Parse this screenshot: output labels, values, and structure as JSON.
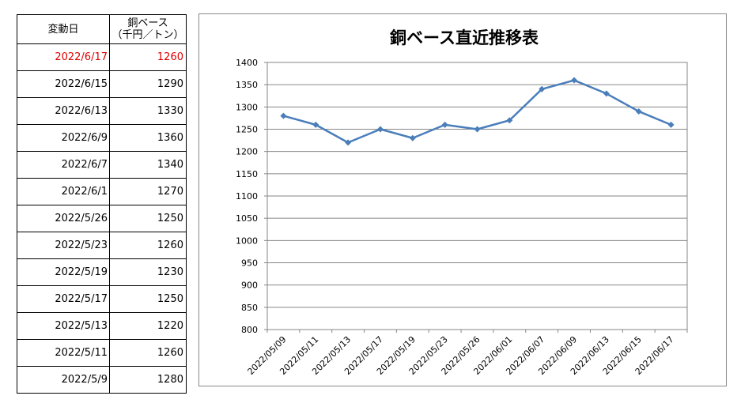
{
  "table": {
    "header_date": "変動日",
    "header_price_line1": "銅ベース",
    "header_price_line2": "（千円／トン）",
    "rows": [
      {
        "date": "2022/6/17",
        "price": "1260",
        "highlight": true
      },
      {
        "date": "2022/6/15",
        "price": "1290",
        "highlight": false
      },
      {
        "date": "2022/6/13",
        "price": "1330",
        "highlight": false
      },
      {
        "date": "2022/6/9",
        "price": "1360",
        "highlight": false
      },
      {
        "date": "2022/6/7",
        "price": "1340",
        "highlight": false
      },
      {
        "date": "2022/6/1",
        "price": "1270",
        "highlight": false
      },
      {
        "date": "2022/5/26",
        "price": "1250",
        "highlight": false
      },
      {
        "date": "2022/5/23",
        "price": "1260",
        "highlight": false
      },
      {
        "date": "2022/5/19",
        "price": "1230",
        "highlight": false
      },
      {
        "date": "2022/5/17",
        "price": "1250",
        "highlight": false
      },
      {
        "date": "2022/5/13",
        "price": "1220",
        "highlight": false
      },
      {
        "date": "2022/5/11",
        "price": "1260",
        "highlight": false
      },
      {
        "date": "2022/5/9",
        "price": "1280",
        "highlight": false
      }
    ],
    "highlight_color": "#e00000"
  },
  "chart_data": {
    "type": "line",
    "title": "銅ベース直近推移表",
    "xlabel": "",
    "ylabel": "",
    "categories": [
      "2022/05/09",
      "2022/05/11",
      "2022/05/13",
      "2022/05/17",
      "2022/05/19",
      "2022/05/23",
      "2022/05/26",
      "2022/06/01",
      "2022/06/07",
      "2022/06/09",
      "2022/06/13",
      "2022/06/15",
      "2022/06/17"
    ],
    "series": [
      {
        "values": [
          1280,
          1260,
          1220,
          1250,
          1230,
          1260,
          1250,
          1270,
          1340,
          1360,
          1330,
          1290,
          1260
        ]
      }
    ],
    "ylim": [
      800,
      1400
    ],
    "yticks": [
      800,
      850,
      900,
      950,
      1000,
      1050,
      1100,
      1150,
      1200,
      1250,
      1300,
      1350,
      1400
    ],
    "grid": true,
    "legend": "none",
    "line_color": "#4a7ebb",
    "marker": "diamond"
  }
}
